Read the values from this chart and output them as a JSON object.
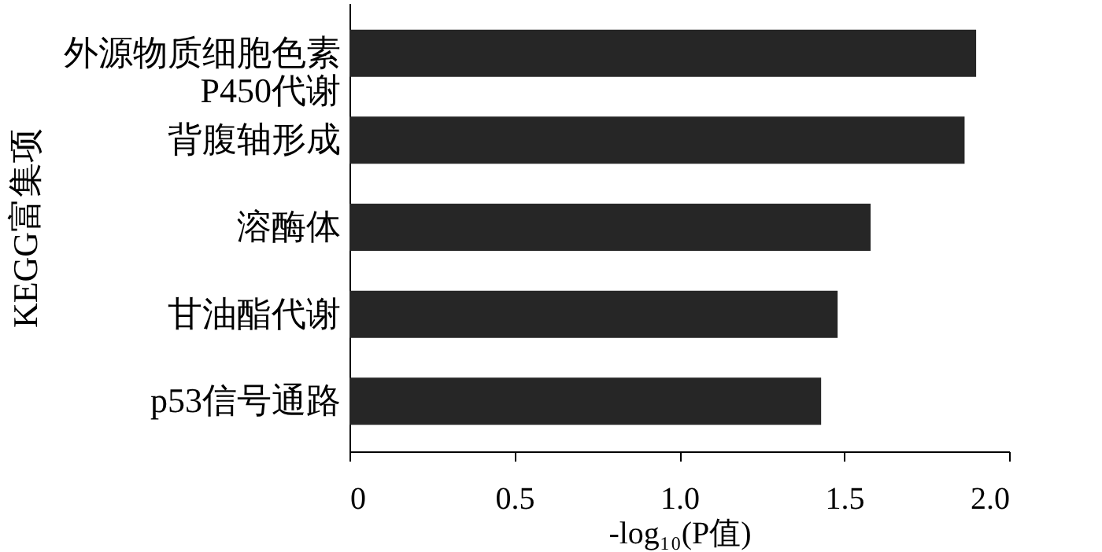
{
  "chart_data": {
    "type": "bar",
    "orientation": "horizontal",
    "categories": [
      "外源物质细胞色素\nP450代谢",
      "背腹轴形成",
      "溶酶体",
      "甘油酯代谢",
      "p53信号通路"
    ],
    "values": [
      1.9,
      1.865,
      1.58,
      1.48,
      1.43
    ],
    "color": "#262626",
    "xlabel": "-log₁₀(P值)",
    "ylabel": "KEGG富集项",
    "xlim": [
      0,
      2.0
    ],
    "xticks": [
      0,
      0.5,
      {
        "value": 1,
        "label": "1.0"
      },
      1.5,
      {
        "value": 2,
        "label": "2.0"
      }
    ],
    "grid": false
  }
}
